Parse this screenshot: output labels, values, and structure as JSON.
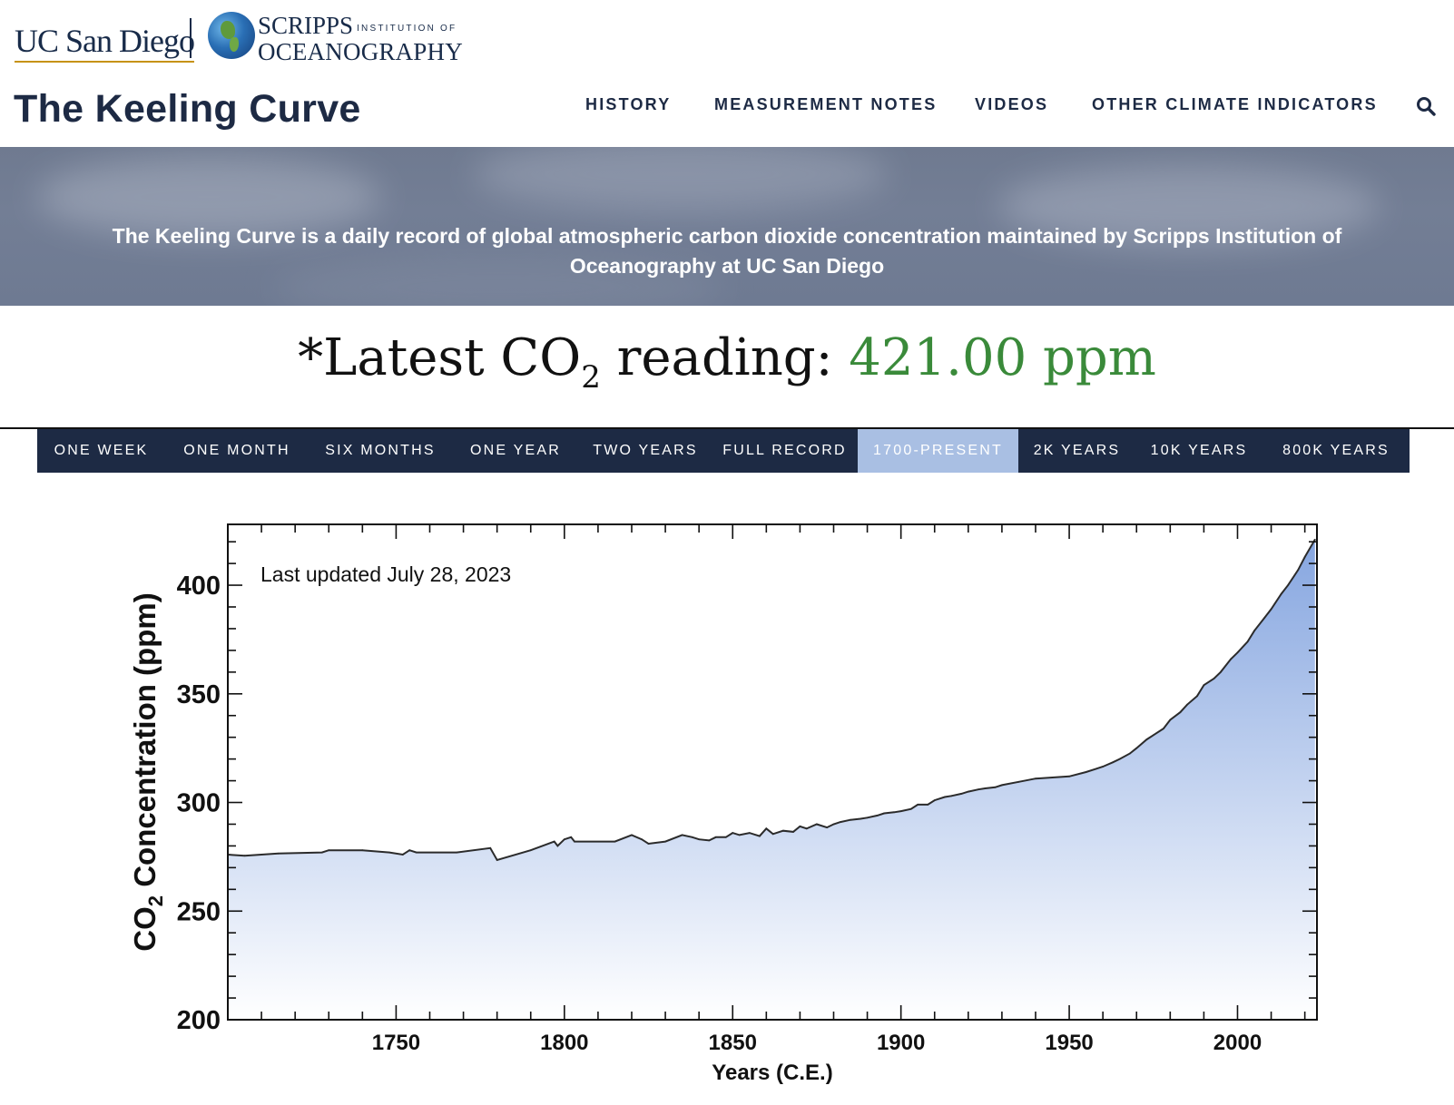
{
  "logos": {
    "ucsd": "UC San Diego",
    "scripps_top": "SCRIPPS",
    "scripps_small": "INSTITUTION OF",
    "scripps_bottom": "OCEANOGRAPHY"
  },
  "header": {
    "title": "The Keeling Curve",
    "nav": [
      "HISTORY",
      "MEASUREMENT NOTES",
      "VIDEOS",
      "OTHER CLIMATE INDICATORS"
    ],
    "search_icon": "search-icon"
  },
  "hero": {
    "text": "The Keeling Curve is a daily record of global atmospheric carbon dioxide concentration maintained by Scripps Institution of Oceanography at UC San Diego"
  },
  "reading": {
    "prefix": "*Latest CO",
    "subscript": "2",
    "label_suffix": " reading: ",
    "value": "421.00 ppm",
    "value_color": "#3a8a3a"
  },
  "tabs": {
    "items": [
      "ONE WEEK",
      "ONE MONTH",
      "SIX MONTHS",
      "ONE YEAR",
      "TWO YEARS",
      "FULL RECORD",
      "1700-PRESENT",
      "2K YEARS",
      "10K YEARS",
      "800K YEARS"
    ],
    "active": "1700-PRESENT",
    "bar_color": "#1d2a44",
    "active_color": "#a9bfe3"
  },
  "chart_data": {
    "type": "area",
    "annotation": "Last updated July 28, 2023",
    "xlabel": "Years (C.E.)",
    "ylabel": "CO2 Concentration (ppm)",
    "ylabel_parts": [
      "CO",
      "2",
      " Concentration (ppm)"
    ],
    "xlim": [
      1700,
      2023.6
    ],
    "ylim": [
      200,
      428
    ],
    "xticks": [
      1750,
      1800,
      1850,
      1900,
      1950,
      2000
    ],
    "yticks": [
      200,
      250,
      300,
      350,
      400
    ],
    "grid": false,
    "fill_top_color": "#86a6e0",
    "fill_bottom_color": "#ffffff",
    "series": [
      {
        "x": [
          1700,
          1705,
          1715,
          1728,
          1730,
          1740,
          1748,
          1752,
          1754,
          1756,
          1768,
          1778,
          1780,
          1790,
          1797,
          1798,
          1800,
          1802,
          1803,
          1815,
          1820,
          1823,
          1825,
          1830,
          1835,
          1838,
          1840,
          1843,
          1845,
          1848,
          1850,
          1852,
          1855,
          1858,
          1860,
          1862,
          1865,
          1868,
          1870,
          1872,
          1875,
          1878,
          1880,
          1882,
          1885,
          1888,
          1890,
          1893,
          1895,
          1898,
          1900,
          1903,
          1905,
          1908,
          1910,
          1913,
          1915,
          1918,
          1920,
          1923,
          1925,
          1928,
          1930,
          1935,
          1940,
          1945,
          1950,
          1955,
          1958,
          1960,
          1963,
          1965,
          1968,
          1970,
          1973,
          1975,
          1978,
          1980,
          1983,
          1985,
          1988,
          1990,
          1993,
          1995,
          1998,
          2000,
          2003,
          2005,
          2008,
          2010,
          2013,
          2015,
          2018,
          2020,
          2023
        ],
        "y": [
          276,
          275.5,
          276.5,
          277,
          278,
          278,
          277,
          276,
          278,
          277,
          277,
          279,
          273.5,
          278,
          282,
          280,
          283,
          284,
          282,
          282,
          285,
          283,
          281,
          282,
          285,
          284,
          283,
          282.5,
          284,
          284,
          286,
          285,
          286,
          284.5,
          288,
          285.5,
          287,
          286.5,
          289,
          288,
          290,
          288.5,
          290,
          291,
          292,
          292.5,
          293,
          294,
          295,
          295.5,
          296,
          297,
          299,
          299,
          301,
          302.5,
          303,
          304,
          305,
          306,
          306.5,
          307,
          308,
          309.5,
          311,
          311.5,
          312,
          314,
          315.5,
          316.5,
          318.5,
          320,
          322.5,
          325,
          329,
          331,
          334,
          338,
          341.5,
          345,
          349,
          354,
          357,
          360,
          366,
          369,
          374,
          379,
          385,
          389,
          396,
          400,
          407,
          413,
          421
        ]
      }
    ]
  }
}
